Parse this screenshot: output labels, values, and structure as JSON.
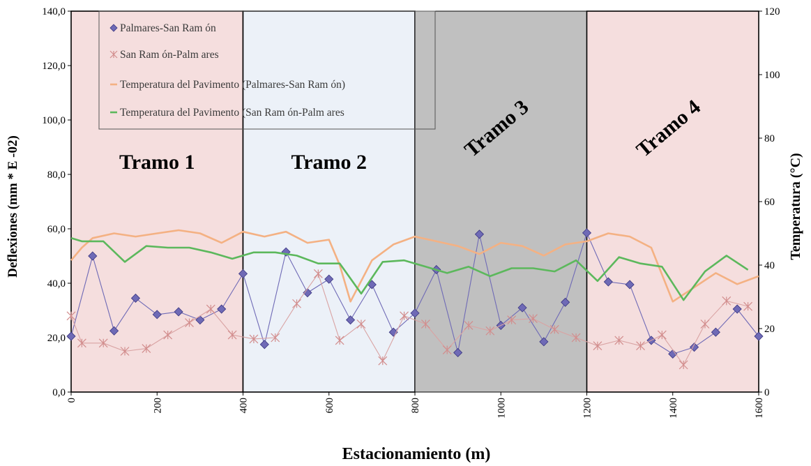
{
  "chart_data": {
    "type": "line",
    "xlabel": "Estacionamiento  (m)",
    "ylabel": "Deflexiones (mm  * E -02)",
    "y2label": "Temperatura  (°C)",
    "xlim": [
      0,
      1600
    ],
    "ylim": [
      0,
      140
    ],
    "y2lim": [
      0,
      120
    ],
    "x_ticks": [
      "0",
      "200",
      "400",
      "600",
      "800",
      "1000",
      "1200",
      "1400",
      "1600"
    ],
    "y_ticks": [
      "0,0",
      "20,0",
      "40,0",
      "60,0",
      "80,0",
      "100,0",
      "120,0",
      "140,0"
    ],
    "y2_ticks": [
      "0",
      "20",
      "40",
      "60",
      "80",
      "100",
      "120"
    ],
    "grid": false,
    "legend_position": "top-left",
    "regions": [
      {
        "label": "Tramo 1",
        "x_start": 0,
        "x_end": 400,
        "color": "#f5dede"
      },
      {
        "label": "Tramo 2",
        "x_start": 400,
        "x_end": 800,
        "color": "#ecf1f8"
      },
      {
        "label": "Tramo 3",
        "x_start": 800,
        "x_end": 1200,
        "color": "#c0c0c0"
      },
      {
        "label": "Tramo 4",
        "x_start": 1200,
        "x_end": 1600,
        "color": "#f5dede"
      }
    ],
    "series": [
      {
        "name": "Palmares-San Ramón",
        "legend_label": "Palmares-San Ram ón",
        "axis": "left",
        "color": "#6f6ab6",
        "marker": "diamond",
        "x": [
          0,
          50,
          100,
          150,
          200,
          250,
          300,
          350,
          400,
          450,
          500,
          550,
          600,
          650,
          700,
          750,
          800,
          850,
          900,
          950,
          1000,
          1050,
          1100,
          1150,
          1200,
          1250,
          1300,
          1350,
          1400,
          1450,
          1500,
          1550,
          1600
        ],
        "values": [
          20.5,
          50,
          22.5,
          34.5,
          28.5,
          29.5,
          26.5,
          30.5,
          43.5,
          17.5,
          51.5,
          36.5,
          41.5,
          26.5,
          39.5,
          22,
          29,
          45,
          14.5,
          58,
          24.5,
          31,
          18.5,
          33,
          58.5,
          40.5,
          39.5,
          19,
          14,
          16.5,
          22,
          30.5,
          20.5
        ]
      },
      {
        "name": "San Ramón-Palmares",
        "legend_label": "San Ram ón-Palm ares",
        "axis": "left",
        "color": "#d9a3a3",
        "marker": "asterisk",
        "x": [
          0,
          25,
          75,
          125,
          175,
          225,
          275,
          325,
          375,
          425,
          475,
          525,
          575,
          625,
          675,
          725,
          775,
          825,
          875,
          925,
          975,
          1025,
          1075,
          1125,
          1175,
          1225,
          1275,
          1325,
          1375,
          1425,
          1475,
          1525,
          1575
        ],
        "values": [
          28,
          18,
          18,
          15,
          16,
          21,
          25.5,
          30.5,
          21,
          19.5,
          20,
          32.5,
          43.5,
          19,
          25,
          11.5,
          28,
          25,
          15.5,
          24.5,
          22.5,
          26.5,
          27,
          23,
          20,
          17,
          19,
          17,
          21,
          10,
          25,
          33.5,
          31.5
        ]
      },
      {
        "name": "Temperatura del Pavimento (Palmares-San Ramón)",
        "legend_label": "Temperatura del Pavimento (Palmares-San Ram ón)",
        "axis": "right",
        "color": "#f4b183",
        "marker": "none",
        "x": [
          0,
          25,
          50,
          100,
          150,
          200,
          250,
          300,
          350,
          400,
          450,
          500,
          550,
          600,
          625,
          650,
          700,
          750,
          800,
          850,
          900,
          950,
          1000,
          1050,
          1100,
          1150,
          1200,
          1250,
          1300,
          1350,
          1400,
          1450,
          1500,
          1550,
          1600
        ],
        "values": [
          41.5,
          45.5,
          48.5,
          50,
          49,
          50,
          51,
          50,
          47,
          50.5,
          49,
          50.5,
          47,
          48,
          40,
          28.5,
          41.5,
          46.5,
          49,
          47.5,
          46,
          43.5,
          47,
          46,
          43,
          46.5,
          47.5,
          50,
          49,
          45.5,
          28.5,
          33,
          37.5,
          34,
          36.5
        ]
      },
      {
        "name": "Temperatura del Pavimento (San Ramón-Palmares",
        "legend_label": "Temperatura del Pavimento (San Ram ón-Palm ares",
        "axis": "right",
        "color": "#5cb85c",
        "marker": "none",
        "x": [
          0,
          25,
          75,
          125,
          175,
          225,
          275,
          325,
          375,
          425,
          475,
          525,
          575,
          625,
          675,
          725,
          775,
          825,
          875,
          925,
          975,
          1025,
          1075,
          1125,
          1175,
          1225,
          1275,
          1325,
          1375,
          1425,
          1475,
          1525,
          1575
        ],
        "values": [
          48.5,
          47.5,
          47.5,
          41,
          46,
          45.5,
          45.5,
          44,
          42,
          44,
          44,
          43,
          40.5,
          40.5,
          31,
          41,
          41.5,
          39.5,
          37.5,
          39.5,
          36.5,
          39,
          39,
          38,
          41.5,
          35,
          42.5,
          40.5,
          39.5,
          29,
          38,
          43,
          38.5
        ]
      }
    ],
    "annotations": [
      {
        "text": "Tramo 1",
        "x": 200,
        "y": 82,
        "rotation": 0
      },
      {
        "text": "Tramo 2",
        "x": 600,
        "y": 82,
        "rotation": 0
      },
      {
        "text": "Tramo 3",
        "x": 1000,
        "y": 95,
        "rotation": -40
      },
      {
        "text": "Tramo 4",
        "x": 1400,
        "y": 95,
        "rotation": -40
      }
    ]
  }
}
